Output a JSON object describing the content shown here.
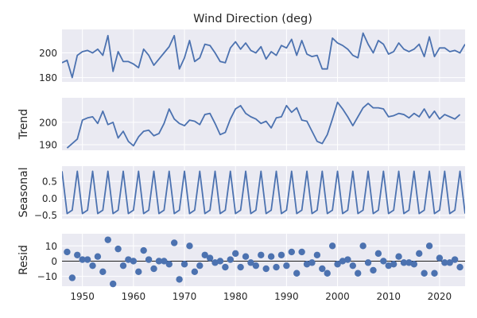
{
  "figure": {
    "title": "Wind Direction (deg)",
    "background": "#ffffff",
    "panel_background": "#eaeaf2",
    "grid_color": "#ffffff",
    "line_color": "#4c72b0",
    "zero_line_color": "#000000"
  },
  "chart_data": [
    {
      "type": "line",
      "panel": "observed",
      "title": "Wind Direction (deg)",
      "ylabel": "",
      "xlabel": "",
      "xlim": [
        1946,
        2025
      ],
      "ylim": [
        176.5,
        219
      ],
      "yticks": [
        180,
        200
      ],
      "xticks": [
        1950,
        1960,
        1970,
        1980,
        1990,
        2000,
        2010,
        2020
      ],
      "grid": true,
      "series": [
        {
          "x": [
            1946,
            1947,
            1948,
            1949,
            1950,
            1951,
            1952,
            1953,
            1954,
            1955,
            1956,
            1957,
            1958,
            1959,
            1960,
            1961,
            1962,
            1963,
            1964,
            1965,
            1966,
            1967,
            1968,
            1969,
            1970,
            1971,
            1972,
            1973,
            1974,
            1975,
            1976,
            1977,
            1978,
            1979,
            1980,
            1981,
            1982,
            1983,
            1984,
            1985,
            1986,
            1987,
            1988,
            1989,
            1990,
            1991,
            1992,
            1993,
            1994,
            1995,
            1996,
            1997,
            1998,
            1999,
            2000,
            2001,
            2002,
            2003,
            2004,
            2005,
            2006,
            2007,
            2008,
            2009,
            2010,
            2011,
            2012,
            2013,
            2014,
            2015,
            2016,
            2017,
            2018,
            2019,
            2020,
            2021,
            2022,
            2023,
            2024,
            2025
          ],
          "values": [
            192,
            194,
            180,
            198,
            201,
            202,
            200,
            203,
            198,
            214,
            185,
            201,
            193,
            193,
            191,
            188,
            203,
            198,
            190,
            195,
            200,
            205,
            214,
            187,
            196,
            210,
            193,
            196,
            207,
            206,
            200,
            193,
            192,
            204,
            209,
            203,
            208,
            202,
            200,
            205,
            195,
            201,
            198,
            206,
            204,
            211,
            198,
            210,
            199,
            197,
            198,
            187,
            187,
            212,
            208,
            206,
            203,
            198,
            196,
            216,
            207,
            200,
            210,
            207,
            199,
            201,
            208,
            203,
            201,
            203,
            207,
            197,
            213,
            197,
            204,
            204,
            201,
            202,
            200,
            207
          ]
        }
      ]
    },
    {
      "type": "line",
      "panel": "trend",
      "title": "",
      "ylabel": "Trend",
      "xlabel": "",
      "xlim": [
        1946,
        2025
      ],
      "ylim": [
        187.5,
        211
      ],
      "yticks": [
        190,
        200
      ],
      "xticks": [
        1950,
        1960,
        1970,
        1980,
        1990,
        2000,
        2010,
        2020
      ],
      "grid": true,
      "series": [
        {
          "x": [
            1947,
            1948,
            1949,
            1950,
            1951,
            1952,
            1953,
            1954,
            1955,
            1956,
            1957,
            1958,
            1959,
            1960,
            1961,
            1962,
            1963,
            1964,
            1965,
            1966,
            1967,
            1968,
            1969,
            1970,
            1971,
            1972,
            1973,
            1974,
            1975,
            1976,
            1977,
            1978,
            1979,
            1980,
            1981,
            1982,
            1983,
            1984,
            1985,
            1986,
            1987,
            1988,
            1989,
            1990,
            1991,
            1992,
            1993,
            1994,
            1995,
            1996,
            1997,
            1998,
            1999,
            2000,
            2001,
            2002,
            2003,
            2004,
            2005,
            2006,
            2007,
            2008,
            2009,
            2010,
            2011,
            2012,
            2013,
            2014,
            2015,
            2016,
            2017,
            2018,
            2019,
            2020,
            2021,
            2022,
            2023,
            2024
          ],
          "values": [
            188.5,
            190.5,
            192.5,
            201,
            202,
            202.5,
            199.5,
            205,
            199,
            200,
            193,
            196,
            191.5,
            189.5,
            193.5,
            196,
            196.5,
            194,
            195,
            199.5,
            206,
            201.5,
            199.5,
            198.5,
            201,
            200.5,
            199,
            203.5,
            204,
            199.5,
            194.5,
            195.5,
            201.5,
            206,
            207.5,
            204,
            202.5,
            201.5,
            199.5,
            200.5,
            197.5,
            202,
            202.5,
            207.5,
            204.5,
            206.5,
            201,
            200.5,
            196,
            191.5,
            190.5,
            194.5,
            201.5,
            209,
            206,
            202.5,
            198.5,
            202.5,
            206.5,
            208.5,
            206.5,
            206.5,
            206,
            202.5,
            203,
            204,
            203.5,
            202,
            204,
            202.5,
            206,
            202,
            205,
            201.5,
            203.5,
            202.5,
            201.5,
            203.5
          ]
        }
      ]
    },
    {
      "type": "line",
      "panel": "seasonal",
      "title": "",
      "ylabel": "Seasonal",
      "xlabel": "",
      "xlim": [
        1946,
        2025
      ],
      "ylim": [
        -0.6,
        0.95
      ],
      "yticks": [
        -0.5,
        0.0,
        0.5
      ],
      "ytick_labels": [
        "−0.5",
        "0.0",
        "0.5"
      ],
      "xticks": [
        1950,
        1960,
        1970,
        1980,
        1990,
        2000,
        2010,
        2020
      ],
      "grid": true,
      "pattern": {
        "period": 3,
        "cycle_values": [
          0.8,
          -0.45,
          -0.35
        ],
        "start_year": 1946
      }
    },
    {
      "type": "scatter",
      "panel": "resid",
      "title": "",
      "ylabel": "Resid",
      "xlabel": "",
      "xlim": [
        1946,
        2025
      ],
      "ylim": [
        -16.5,
        18
      ],
      "yticks": [
        -10,
        0,
        10
      ],
      "ytick_labels": [
        "−10",
        "0",
        "10"
      ],
      "xticks": [
        1950,
        1960,
        1970,
        1980,
        1990,
        2000,
        2010,
        2020
      ],
      "xtick_labels": [
        "1950",
        "1960",
        "1970",
        "1980",
        "1990",
        "2000",
        "2010",
        "2020"
      ],
      "grid": true,
      "zero_line": true,
      "series": [
        {
          "x": [
            1947,
            1948,
            1949,
            1950,
            1951,
            1952,
            1953,
            1954,
            1955,
            1956,
            1957,
            1958,
            1959,
            1960,
            1961,
            1962,
            1963,
            1964,
            1965,
            1966,
            1967,
            1968,
            1969,
            1970,
            1971,
            1972,
            1973,
            1974,
            1975,
            1976,
            1977,
            1978,
            1979,
            1980,
            1981,
            1982,
            1983,
            1984,
            1985,
            1986,
            1987,
            1988,
            1989,
            1990,
            1991,
            1992,
            1993,
            1994,
            1995,
            1996,
            1997,
            1998,
            1999,
            2000,
            2001,
            2002,
            2003,
            2004,
            2005,
            2006,
            2007,
            2008,
            2009,
            2010,
            2011,
            2012,
            2013,
            2014,
            2015,
            2016,
            2017,
            2018,
            2019,
            2020,
            2021,
            2022,
            2023,
            2024
          ],
          "values": [
            6,
            -11,
            4,
            1,
            1,
            -3,
            3,
            -7,
            14,
            -15,
            8,
            -3,
            1,
            0,
            -7,
            7,
            1,
            -5,
            0,
            0,
            -2,
            12,
            -12,
            -2,
            10,
            -7,
            -3,
            4,
            2,
            -1,
            0,
            -4,
            1,
            5,
            -4,
            3,
            -1,
            -3,
            4,
            -5,
            3,
            -4,
            4,
            -3,
            6,
            -8,
            6,
            -2,
            -1,
            4,
            -5,
            -8,
            10,
            -2,
            0,
            1,
            -3,
            -8,
            10,
            -1,
            -6,
            5,
            0,
            -3,
            -2,
            3,
            -1,
            -1,
            -2,
            5,
            -8,
            10,
            -8,
            2,
            -1,
            -1,
            1,
            -4
          ]
        }
      ]
    }
  ]
}
